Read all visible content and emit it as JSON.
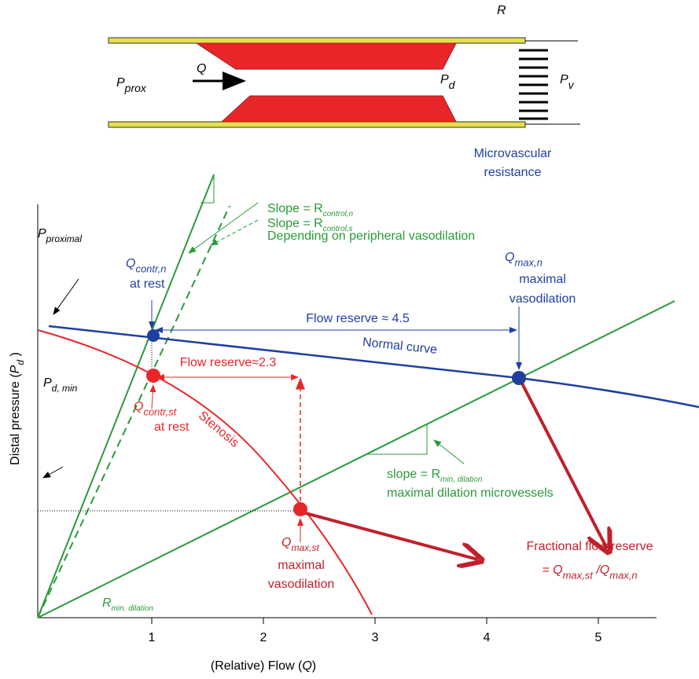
{
  "labels": [
    [
      {
        "text": "R",
        "italic": true
      }
    ],
    [
      {
        "text": "P",
        "italic": true
      },
      {
        "text": "prox",
        "italic": true,
        "sub": true
      }
    ],
    [
      {
        "text": "Q",
        "italic": true
      }
    ],
    [
      {
        "text": "P",
        "italic": true
      },
      {
        "text": "d",
        "italic": true,
        "sub": true
      }
    ],
    [
      {
        "text": "P",
        "italic": true
      },
      {
        "text": "v",
        "italic": true,
        "sub": true
      }
    ],
    [
      {
        "text": "Microvascular"
      }
    ],
    [
      {
        "text": "resistance"
      }
    ],
    [
      {
        "text": "Slope = R"
      },
      {
        "text": "control,n",
        "italic": true,
        "sub": true
      }
    ],
    [
      {
        "text": "Slope = R"
      },
      {
        "text": "control,s",
        "italic": true,
        "sub": true
      }
    ],
    [
      {
        "text": "Depending on peripheral vasodilation"
      }
    ],
    [
      {
        "text": "P",
        "italic": true
      },
      {
        "text": "proximal",
        "italic": true,
        "sub": true
      }
    ],
    [
      {
        "text": "Q",
        "italic": true
      },
      {
        "text": "contr,n",
        "italic": true,
        "sub": true
      }
    ],
    [
      {
        "text": "at rest"
      }
    ],
    [
      {
        "text": "Q",
        "italic": true
      },
      {
        "text": "max,n",
        "italic": true,
        "sub": true
      }
    ],
    [
      {
        "text": "maximal"
      }
    ],
    [
      {
        "text": "vasodilation"
      }
    ],
    [
      {
        "text": "Flow reserve ≈ 4.5"
      }
    ],
    [
      {
        "text": "Normal curve"
      }
    ],
    [
      {
        "text": "Flow reserve≈2.3"
      }
    ],
    [
      {
        "text": "Stenosis"
      }
    ],
    [
      {
        "text": "Q",
        "italic": true
      },
      {
        "text": "contr,st",
        "italic": true,
        "sub": true
      }
    ],
    [
      {
        "text": "at rest"
      }
    ],
    [
      {
        "text": "P",
        "italic": true
      },
      {
        "text": "d, min",
        "italic": true,
        "sub": true
      }
    ],
    [
      {
        "text": "slope = R"
      },
      {
        "text": "min, dilation",
        "italic": true,
        "sub": true
      }
    ],
    [
      {
        "text": "maximal dilation microvessels"
      }
    ],
    [
      {
        "text": "Q",
        "italic": true
      },
      {
        "text": "max,st",
        "italic": true,
        "sub": true
      }
    ],
    [
      {
        "text": "maximal"
      }
    ],
    [
      {
        "text": "vasodilation"
      }
    ],
    [
      {
        "text": "Fractional flow reserve"
      }
    ],
    [
      {
        "text": "= Q",
        "italic": true
      },
      {
        "text": "max,st",
        "italic": true,
        "sub": true
      },
      {
        "text": " /Q",
        "italic": true
      },
      {
        "text": "max,n",
        "italic": true,
        "sub": true
      }
    ],
    [
      {
        "text": "R",
        "italic": true
      },
      {
        "text": "min. dilation",
        "italic": true,
        "sub": true
      }
    ],
    [
      {
        "text": "Distal pressure ("
      },
      {
        "text": "P",
        "italic": true
      },
      {
        "text": "d",
        "italic": true,
        "sub": true
      },
      {
        "text": " )"
      }
    ],
    [
      {
        "text": "(Relative) Flow ("
      },
      {
        "text": "Q",
        "italic": true
      },
      {
        "text": ")"
      }
    ]
  ],
  "x_ticks": [
    1,
    2,
    3,
    4,
    5
  ]
}
